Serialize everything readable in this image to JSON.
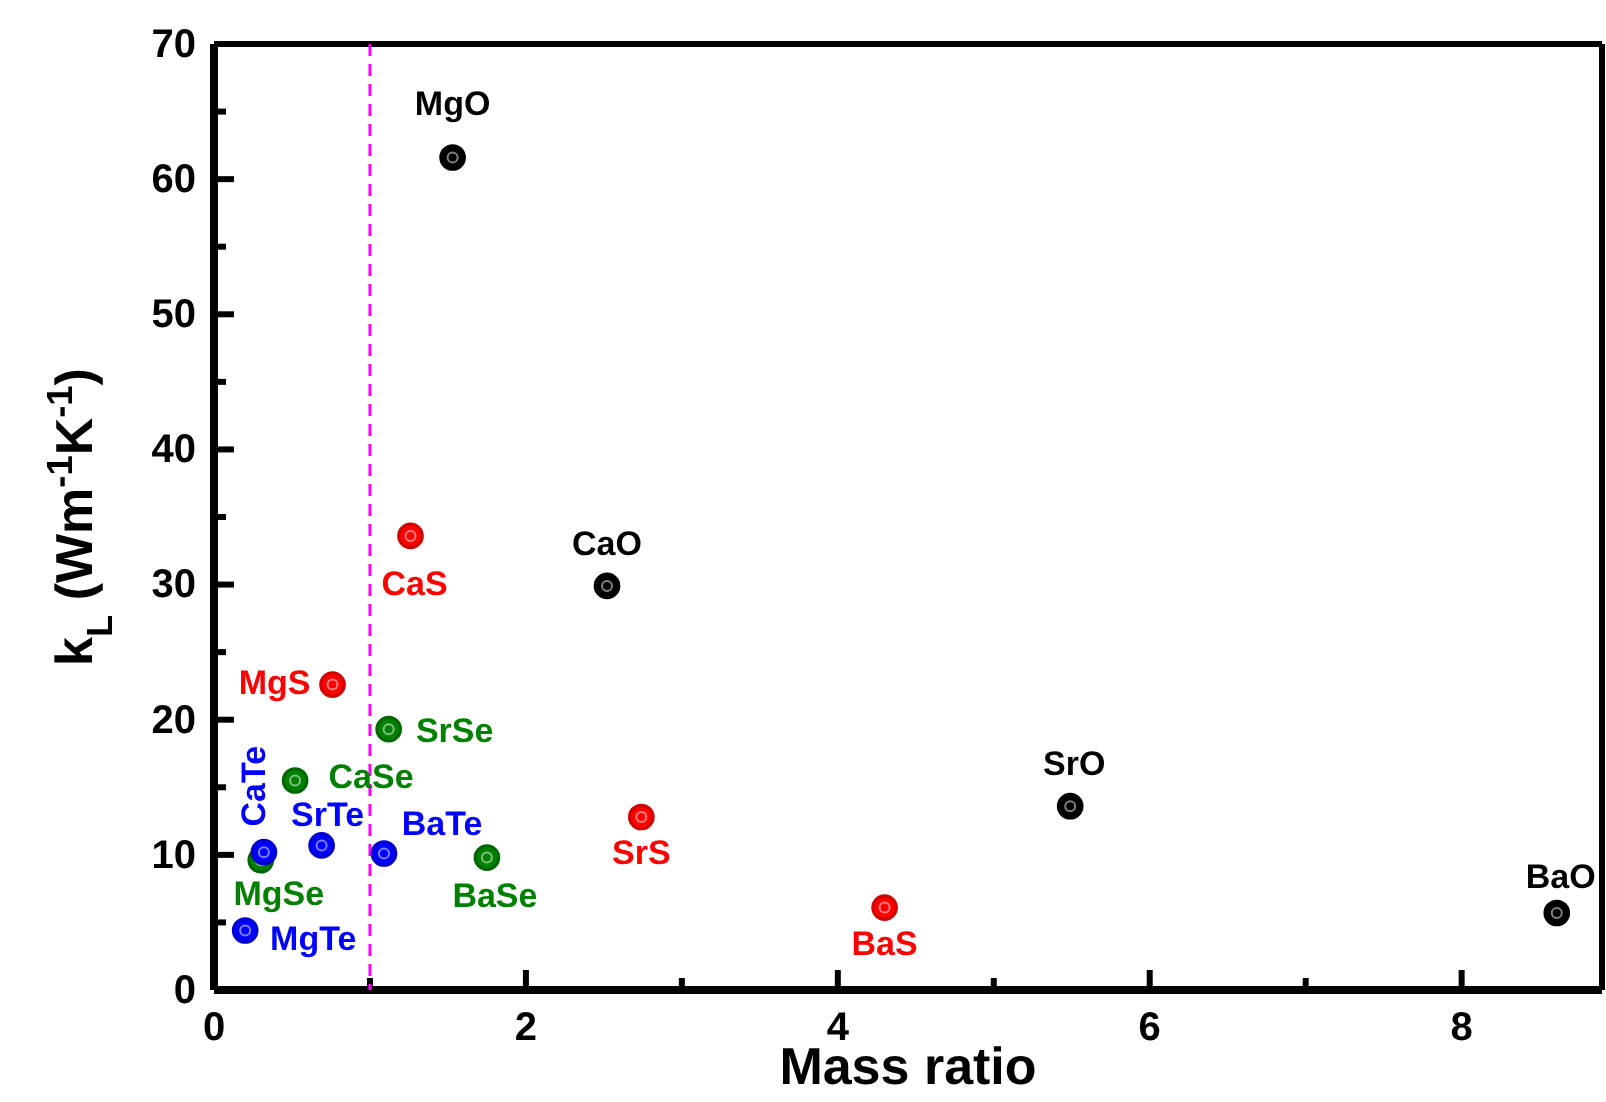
{
  "chart_data": {
    "type": "scatter",
    "xlabel": "Mass ratio",
    "ylabel": "k$_{L}$ (Wm$^{-1}$K$^{-1}$)",
    "xlim": [
      0,
      8.9
    ],
    "xticks": [
      0,
      {
        "value": 1,
        "label": null
      },
      2,
      {
        "value": 3,
        "label": null
      },
      4,
      {
        "value": 5,
        "label": null
      },
      6,
      {
        "value": 7,
        "label": null
      },
      8
    ],
    "ylim": [
      0,
      70
    ],
    "yticks": [
      0,
      {
        "value": 5,
        "label": null
      },
      10,
      {
        "value": 15,
        "label": null
      },
      20,
      {
        "value": 25,
        "label": null
      },
      30,
      {
        "value": 35,
        "label": null
      },
      40,
      {
        "value": 45,
        "label": null
      },
      50,
      {
        "value": 55,
        "label": null
      },
      60,
      {
        "value": 65,
        "label": null
      },
      70
    ],
    "grid": false,
    "marker": "circle",
    "series": [
      {
        "color": "#000000",
        "x": [
          1.53,
          2.52,
          5.49,
          8.61
        ],
        "values": [
          61.6,
          29.9,
          13.6,
          5.7
        ]
      },
      {
        "color": "#ff0000",
        "x": [
          1.26,
          0.76,
          2.74,
          4.3
        ],
        "values": [
          33.6,
          22.6,
          12.8,
          6.1
        ]
      },
      {
        "color": "#008000",
        "x": [
          1.12,
          0.52,
          0.3,
          1.75
        ],
        "values": [
          19.3,
          15.5,
          9.6,
          9.8
        ]
      },
      {
        "color": "#0000ff",
        "x": [
          0.32,
          0.69,
          1.09,
          0.2
        ],
        "values": [
          10.2,
          10.7,
          10.1,
          4.4
        ]
      }
    ],
    "ref_lines": [
      {
        "axis": "x",
        "value": 1,
        "label": null,
        "color": "#ff00ff",
        "line_style": "dashed"
      }
    ],
    "annotations": [
      {
        "text": "MgO",
        "x": 1.53,
        "y": 61.6
      },
      {
        "text": "CaS",
        "x": 1.26,
        "y": 33.6
      },
      {
        "text": "CaO",
        "x": 2.52,
        "y": 29.9
      },
      {
        "text": "MgS",
        "x": 0.76,
        "y": 22.6
      },
      {
        "text": "SrSe",
        "x": 1.12,
        "y": 19.3
      },
      {
        "text": "CaSe",
        "x": 0.52,
        "y": 15.5
      },
      {
        "text": "CaTe",
        "x": 0.32,
        "y": 10.2
      },
      {
        "text": "MgSe",
        "x": 0.3,
        "y": 9.6
      },
      {
        "text": "SrTe",
        "x": 0.69,
        "y": 10.7
      },
      {
        "text": "BaTe",
        "x": 1.09,
        "y": 10.1
      },
      {
        "text": "BaSe",
        "x": 1.75,
        "y": 9.8
      },
      {
        "text": "SrS",
        "x": 2.74,
        "y": 12.8
      },
      {
        "text": "MgTe",
        "x": 0.2,
        "y": 4.4
      },
      {
        "text": "BaS",
        "x": 4.3,
        "y": 6.1
      },
      {
        "text": "SrO",
        "x": 5.49,
        "y": 13.6
      },
      {
        "text": "BaO",
        "x": 8.61,
        "y": 5.7
      }
    ]
  }
}
